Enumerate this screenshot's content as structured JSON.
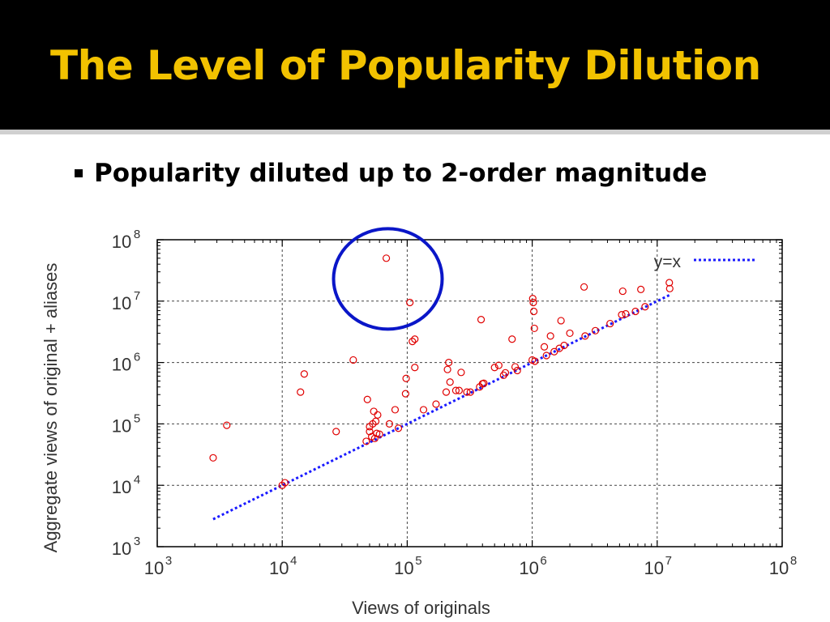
{
  "slide": {
    "title": "The Level of Popularity Dilution",
    "bullet": "Popularity diluted up to 2-order magnitude"
  },
  "colors": {
    "title_text": "#f2c200",
    "title_bg": "#000000",
    "points": "#e00000",
    "reference_line": "#1a1aff",
    "highlight_circle": "#0a16c8"
  },
  "chart_data": {
    "type": "scatter",
    "xlabel": "Views of originals",
    "ylabel": "Aggregate views of original + aliases",
    "xscale": "log",
    "yscale": "log",
    "xlim": [
      1000,
      100000000
    ],
    "ylim": [
      1000,
      100000000
    ],
    "x_ticks": [
      {
        "base": "10",
        "exp": "3"
      },
      {
        "base": "10",
        "exp": "4"
      },
      {
        "base": "10",
        "exp": "5"
      },
      {
        "base": "10",
        "exp": "6"
      },
      {
        "base": "10",
        "exp": "7"
      },
      {
        "base": "10",
        "exp": "8"
      }
    ],
    "y_ticks": [
      {
        "base": "10",
        "exp": "3"
      },
      {
        "base": "10",
        "exp": "4"
      },
      {
        "base": "10",
        "exp": "5"
      },
      {
        "base": "10",
        "exp": "6"
      },
      {
        "base": "10",
        "exp": "7"
      },
      {
        "base": "10",
        "exp": "8"
      }
    ],
    "grid": true,
    "legend": {
      "label": "y=x",
      "placement": "top-right"
    },
    "reference_line": {
      "label": "y=x",
      "x_range": [
        2800,
        13000000
      ]
    },
    "highlight": {
      "shape": "circle",
      "center_x": 70000,
      "center_y": 23000000,
      "note": "outlier region"
    },
    "points": [
      [
        2800,
        28000
      ],
      [
        3600,
        95000
      ],
      [
        10000,
        10000
      ],
      [
        10500,
        11000
      ],
      [
        14000,
        330000
      ],
      [
        15000,
        650000
      ],
      [
        27000,
        75000
      ],
      [
        37000,
        1100000
      ],
      [
        47000,
        52000
      ],
      [
        48000,
        250000
      ],
      [
        50000,
        75000
      ],
      [
        50000,
        90000
      ],
      [
        52000,
        62000
      ],
      [
        53000,
        100000
      ],
      [
        54000,
        160000
      ],
      [
        55000,
        58000
      ],
      [
        56000,
        110000
      ],
      [
        57000,
        70000
      ],
      [
        58000,
        140000
      ],
      [
        60000,
        68000
      ],
      [
        68000,
        50000000
      ],
      [
        72000,
        100000
      ],
      [
        80000,
        170000
      ],
      [
        85000,
        85000
      ],
      [
        97000,
        310000
      ],
      [
        98000,
        550000
      ],
      [
        105000,
        9500000
      ],
      [
        110000,
        2200000
      ],
      [
        115000,
        2400000
      ],
      [
        115000,
        830000
      ],
      [
        135000,
        170000
      ],
      [
        170000,
        210000
      ],
      [
        205000,
        330000
      ],
      [
        210000,
        770000
      ],
      [
        215000,
        1000000
      ],
      [
        220000,
        480000
      ],
      [
        245000,
        350000
      ],
      [
        260000,
        350000
      ],
      [
        270000,
        690000
      ],
      [
        300000,
        330000
      ],
      [
        320000,
        330000
      ],
      [
        380000,
        400000
      ],
      [
        390000,
        5000000
      ],
      [
        400000,
        450000
      ],
      [
        410000,
        460000
      ],
      [
        500000,
        830000
      ],
      [
        540000,
        900000
      ],
      [
        590000,
        620000
      ],
      [
        610000,
        680000
      ],
      [
        690000,
        2400000
      ],
      [
        730000,
        850000
      ],
      [
        760000,
        740000
      ],
      [
        1000000,
        1100000
      ],
      [
        1010000,
        11000000
      ],
      [
        1020000,
        9500000
      ],
      [
        1030000,
        6800000
      ],
      [
        1040000,
        3600000
      ],
      [
        1050000,
        1050000
      ],
      [
        1250000,
        1800000
      ],
      [
        1300000,
        1300000
      ],
      [
        1400000,
        2700000
      ],
      [
        1500000,
        1500000
      ],
      [
        1650000,
        1700000
      ],
      [
        1700000,
        4800000
      ],
      [
        1800000,
        1900000
      ],
      [
        2000000,
        3000000
      ],
      [
        2600000,
        17000000
      ],
      [
        2650000,
        2700000
      ],
      [
        3200000,
        3300000
      ],
      [
        4200000,
        4300000
      ],
      [
        5200000,
        6000000
      ],
      [
        5300000,
        14500000
      ],
      [
        5600000,
        6200000
      ],
      [
        6700000,
        6800000
      ],
      [
        7400000,
        15500000
      ],
      [
        8000000,
        8100000
      ],
      [
        12500000,
        20000000
      ],
      [
        12600000,
        16000000
      ]
    ]
  }
}
